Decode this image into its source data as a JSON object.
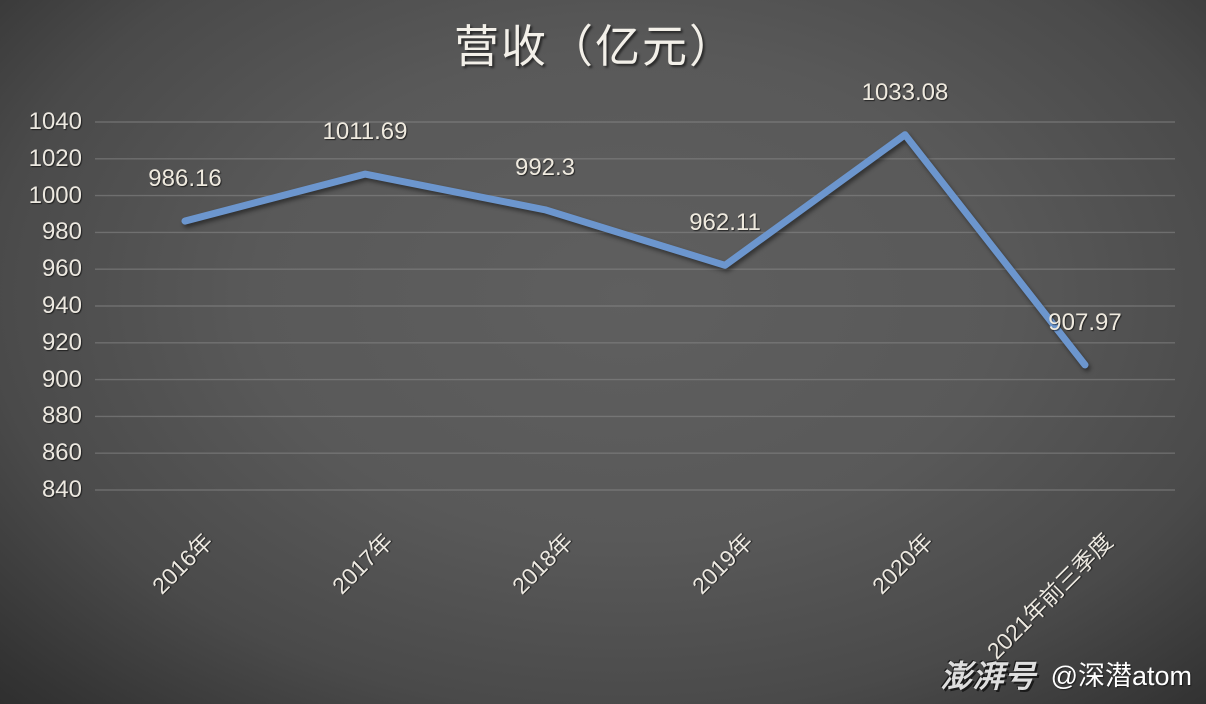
{
  "chart_data": {
    "type": "line",
    "title": "营收（亿元）",
    "categories": [
      "2016年",
      "2017年",
      "2018年",
      "2019年",
      "2020年",
      "2021年前三季度"
    ],
    "values": [
      986.16,
      1011.69,
      992.3,
      962.11,
      1033.08,
      907.97
    ],
    "data_labels": [
      "986.16",
      "1011.69",
      "992.3",
      "962.11",
      "1033.08",
      "907.97"
    ],
    "ylim": [
      840,
      1040
    ],
    "ytick_step": 20,
    "yticks": [
      1040,
      1020,
      1000,
      980,
      960,
      940,
      920,
      900,
      880,
      860,
      840
    ],
    "xlabel": "",
    "ylabel": "",
    "grid": true,
    "legend_position": "none",
    "line_color": "#6C96CE",
    "label_color": "#ECE8E0",
    "background_center": "#5F5F5F",
    "background_edge": "#262626"
  },
  "watermark": {
    "logo": "澎湃号",
    "handle": "@深潜atom"
  }
}
